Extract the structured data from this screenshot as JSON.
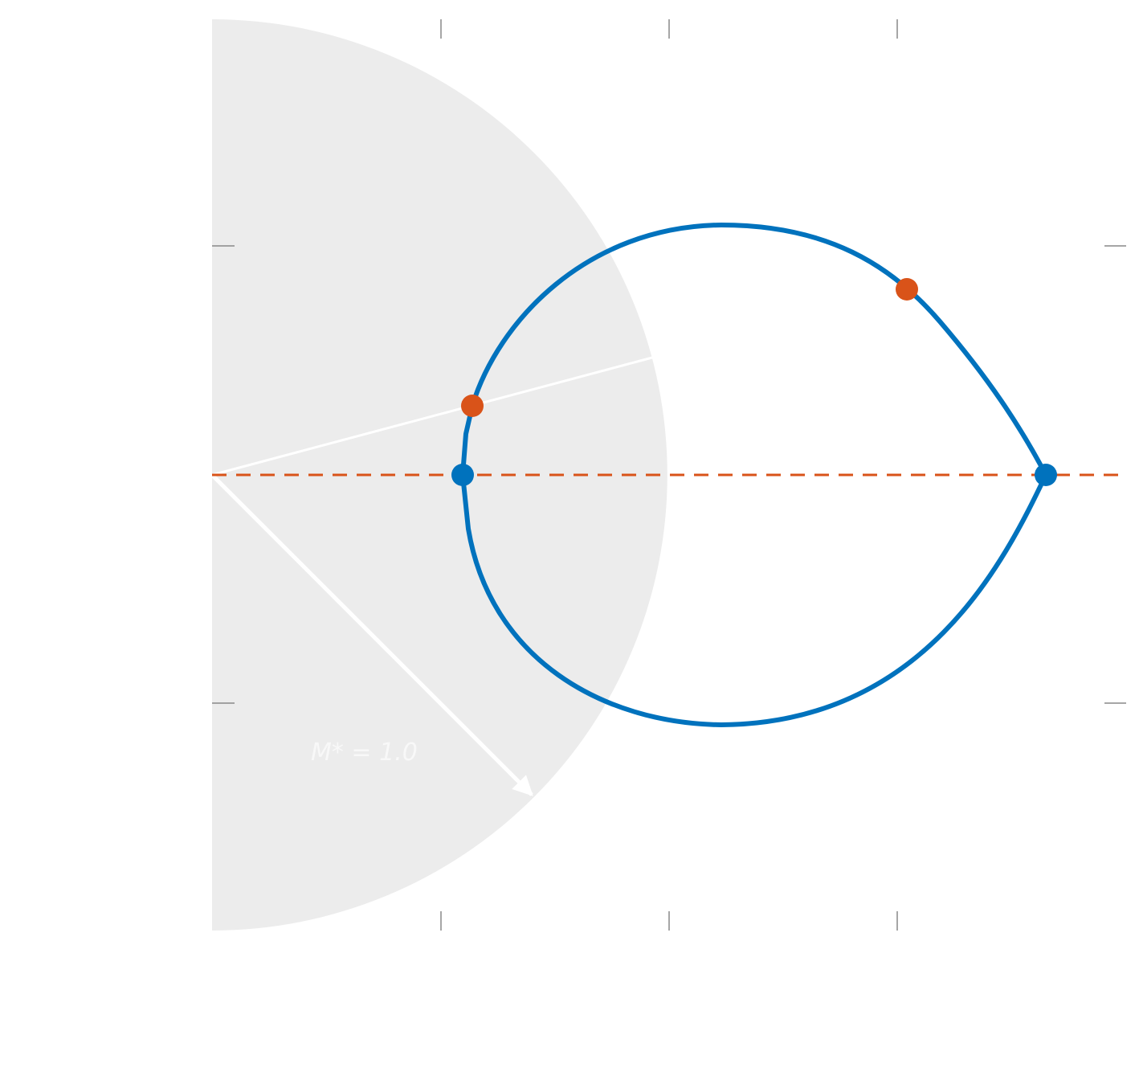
{
  "annotation": {
    "label": "M* = 1.0"
  }
}
